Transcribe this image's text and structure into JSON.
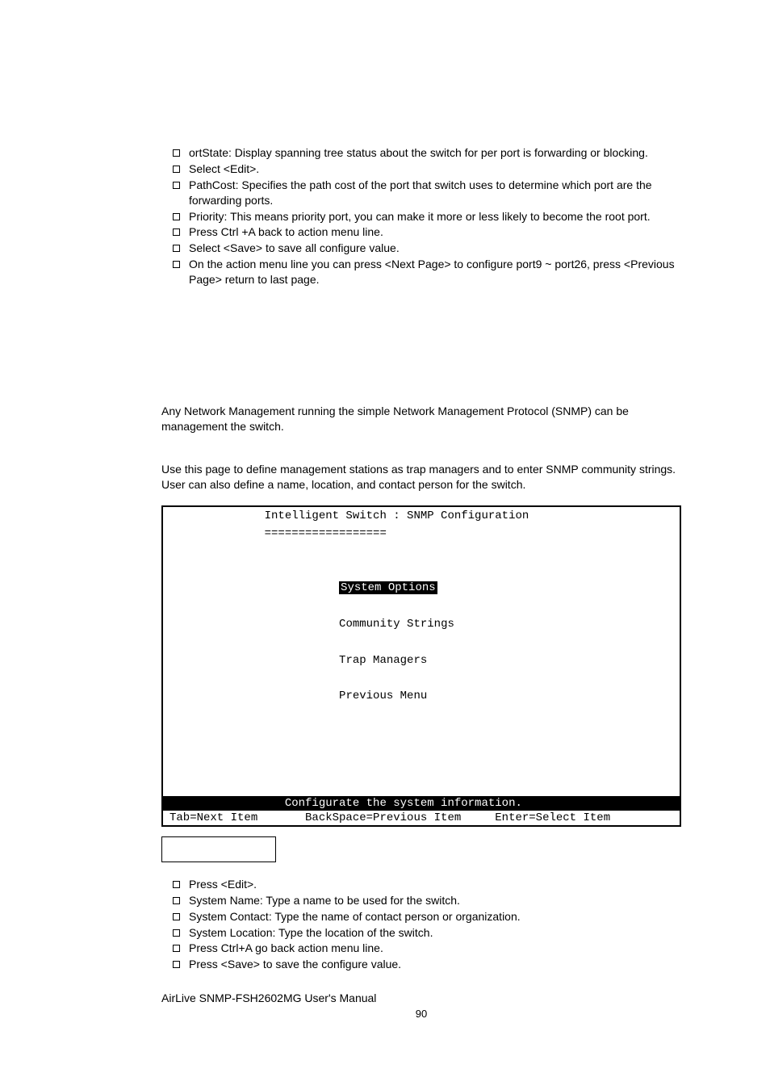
{
  "top_bullets": [
    " ortState: Display spanning tree status about the switch for per port is forwarding or blocking.",
    "Select <Edit>.",
    "PathCost: Specifies the path cost of the port that switch uses to determine which port are the forwarding ports.",
    "Priority: This means priority port, you can make it more or less likely to become the root port.",
    "Press Ctrl +A back to action menu line.",
    "Select <Save> to save all configure value.",
    "On the action menu line you can press <Next Page> to configure port9 ~ port26, press <Previous Page> return to last page."
  ],
  "para1": "Any Network Management running the simple Network Management Protocol (SNMP) can be management the switch.",
  "para2": "Use this page to define management stations as trap managers and to enter SNMP community strings. User can also define a name, location, and contact person for the switch.",
  "terminal": {
    "title": "              Intelligent Switch : SNMP Configuration",
    "divider": "              ==================",
    "menu": {
      "indent": "                         ",
      "selected": "System Options",
      "items": [
        "Community Strings",
        "Trap Managers",
        "Previous Menu"
      ]
    },
    "help_line": "                 Configurate the system information.                ",
    "keys_line": "Tab=Next Item       BackSpace=Previous Item     Enter=Select Item"
  },
  "bottom_bullets": [
    "Press <Edit>.",
    "System Name: Type a name to be used for the switch.",
    "System Contact: Type the name of contact person or organization.",
    "System Location: Type the location of the switch.",
    "Press Ctrl+A go back action menu line.",
    "Press <Save> to save the configure value."
  ],
  "footer": "AirLive SNMP-FSH2602MG User's Manual",
  "page_number": "90",
  "colors": {
    "terminal_highlight_bg": "#000000",
    "terminal_highlight_fg": "#ffffff",
    "page_bg": "#ffffff",
    "text": "#000000"
  },
  "typography": {
    "body_font": "Arial, Helvetica, sans-serif",
    "body_size_pt": 11,
    "mono_font": "Courier New, Courier, monospace",
    "mono_size_pt": 11
  }
}
